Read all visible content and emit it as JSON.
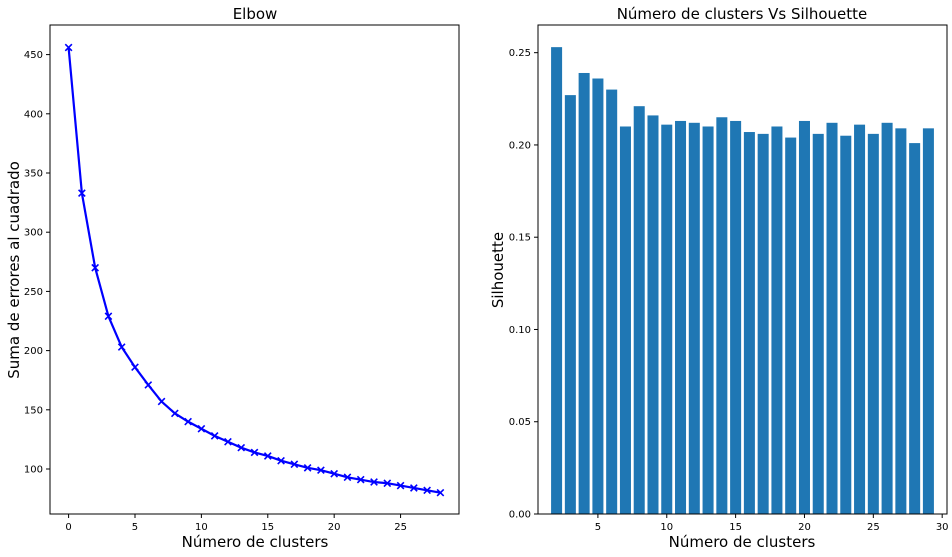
{
  "chart_data": [
    {
      "type": "line",
      "title": "Elbow",
      "xlabel": "Número de clusters",
      "ylabel": "Suma de errores al cuadrado",
      "xlim": [
        -1.4,
        29.4
      ],
      "ylim": [
        62,
        475
      ],
      "xticks": [
        0,
        5,
        10,
        15,
        20,
        25
      ],
      "yticks": [
        100,
        150,
        200,
        250,
        300,
        350,
        400,
        450
      ],
      "grid": false,
      "series": [
        {
          "marker": "x",
          "color": "#0000ff",
          "x": [
            0,
            1,
            2,
            3,
            4,
            5,
            6,
            7,
            8,
            9,
            10,
            11,
            12,
            13,
            14,
            15,
            16,
            17,
            18,
            19,
            20,
            21,
            22,
            23,
            24,
            25,
            26,
            27,
            28
          ],
          "values": [
            456,
            333,
            270,
            229,
            203,
            186,
            171,
            157,
            147,
            140,
            134,
            128,
            123,
            118,
            114,
            111,
            107,
            104,
            101,
            99,
            96,
            93,
            91,
            89,
            88,
            86,
            84,
            82,
            80
          ]
        }
      ]
    },
    {
      "type": "bar",
      "title": "Número de clusters Vs Silhouette",
      "xlabel": "Número de clusters",
      "ylabel": "Silhouette",
      "xlim": [
        0.65,
        30.35
      ],
      "ylim": [
        0,
        0.265
      ],
      "xticks": [
        5,
        10,
        15,
        20,
        25,
        30
      ],
      "yticks": [
        0.0,
        0.05,
        0.1,
        0.15,
        0.2,
        0.25
      ],
      "grid": false,
      "color": "#1f77b4",
      "x": [
        2,
        3,
        4,
        5,
        6,
        7,
        8,
        9,
        10,
        11,
        12,
        13,
        14,
        15,
        16,
        17,
        18,
        19,
        20,
        21,
        22,
        23,
        24,
        25,
        26,
        27,
        28,
        29
      ],
      "values": [
        0.253,
        0.227,
        0.239,
        0.236,
        0.23,
        0.21,
        0.221,
        0.216,
        0.211,
        0.213,
        0.212,
        0.21,
        0.215,
        0.213,
        0.207,
        0.206,
        0.21,
        0.204,
        0.213,
        0.206,
        0.212,
        0.205,
        0.211,
        0.206,
        0.212,
        0.209,
        0.201,
        0.209
      ]
    }
  ]
}
